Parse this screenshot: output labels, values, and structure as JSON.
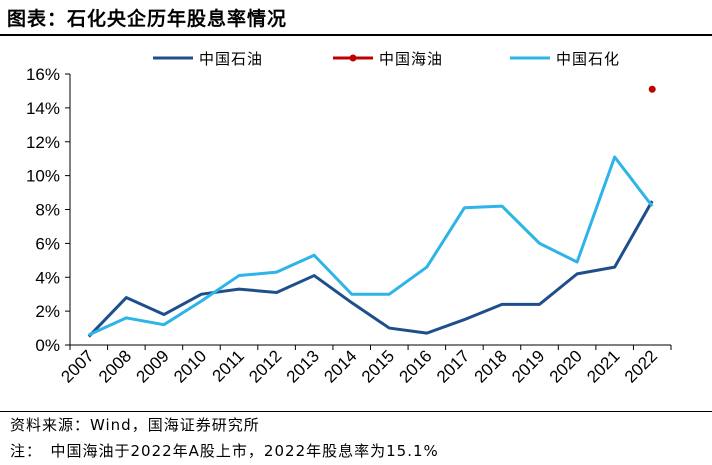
{
  "header": {
    "title": "图表：石化央企历年股息率情况"
  },
  "footer": {
    "source": "资料来源：Wind，国海证券研究所",
    "note": "注：　中国海油于2022年A股上市，2022年股息率为15.1%"
  },
  "colors": {
    "petrochina": "#1f4e8c",
    "cnooc": "#c00000",
    "sinopec": "#2eb4e6"
  },
  "chart_data": {
    "type": "line",
    "title": "",
    "xlabel": "",
    "ylabel": "",
    "categories": [
      "2007",
      "2008",
      "2009",
      "2010",
      "2011",
      "2012",
      "2013",
      "2014",
      "2015",
      "2016",
      "2017",
      "2018",
      "2019",
      "2020",
      "2021",
      "2022"
    ],
    "ylim": [
      0,
      16
    ],
    "yticks": [
      "0%",
      "2%",
      "4%",
      "6%",
      "8%",
      "10%",
      "12%",
      "14%",
      "16%"
    ],
    "grid": false,
    "legend_position": "top",
    "series": [
      {
        "name": "中国石油",
        "values": [
          0.5,
          2.8,
          1.8,
          3.0,
          3.3,
          3.1,
          4.1,
          2.5,
          1.0,
          0.7,
          1.5,
          2.4,
          2.4,
          4.2,
          4.6,
          8.5
        ]
      },
      {
        "name": "中国海油",
        "values": [
          null,
          null,
          null,
          null,
          null,
          null,
          null,
          null,
          null,
          null,
          null,
          null,
          null,
          null,
          null,
          15.1
        ]
      },
      {
        "name": "中国石化",
        "values": [
          0.6,
          1.6,
          1.2,
          2.6,
          4.1,
          4.3,
          5.3,
          3.0,
          3.0,
          4.6,
          8.1,
          8.2,
          6.0,
          4.9,
          11.1,
          8.2
        ]
      }
    ]
  }
}
